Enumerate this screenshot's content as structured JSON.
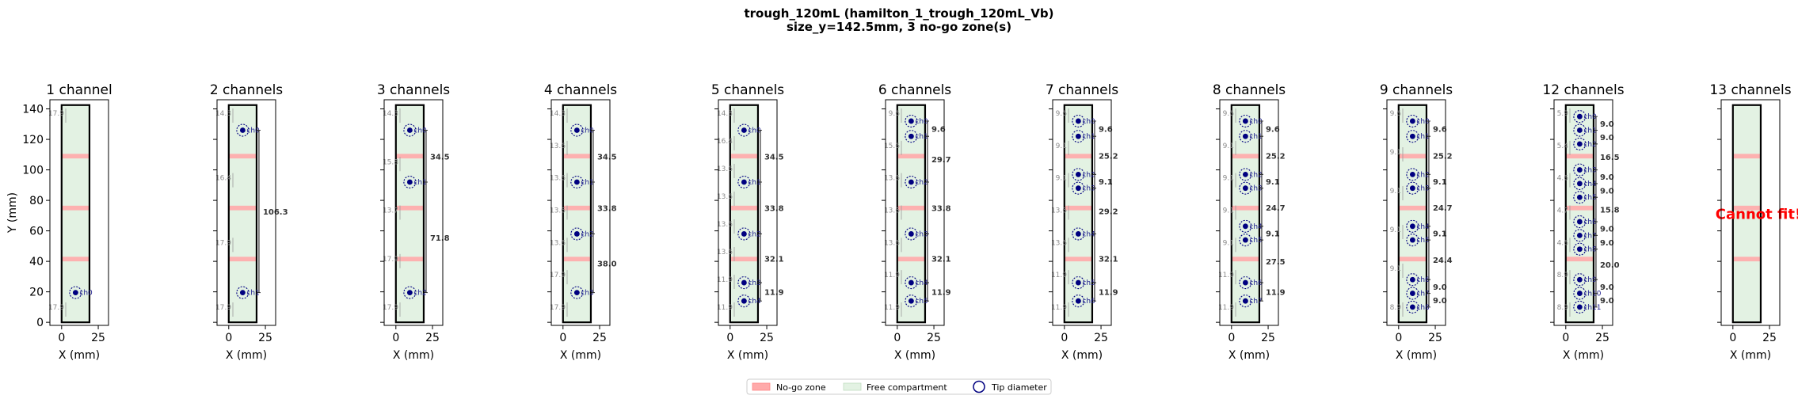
{
  "figure": {
    "title_line1": "trough_120mL (hamilton_1_trough_120mL_Vb)",
    "title_line2": "size_y=142.5mm, 3 no-go zone(s)"
  },
  "legend": {
    "nogo_label": "No-go zone",
    "free_label": "Free compartment",
    "tip_label": "Tip diameter"
  },
  "colors": {
    "nogo": "#ffaaaa",
    "free": "#e3f2e3",
    "tip": "#000080",
    "error": "#ff0000"
  },
  "chart_data": {
    "type": "scatter",
    "xlabel": "X (mm)",
    "ylabel": "Y (mm)",
    "xlim": [
      -8,
      32
    ],
    "ylim": [
      -2,
      146
    ],
    "xticks": [
      "0",
      "25"
    ],
    "yticks": [
      "0",
      "20",
      "40",
      "60",
      "80",
      "100",
      "120",
      "140"
    ],
    "container": {
      "x": [
        0,
        19
      ],
      "y": [
        0,
        142.5
      ]
    },
    "nogo_zones": [
      [
        40,
        43
      ],
      [
        73.5,
        76.5
      ],
      [
        107.5,
        110.5
      ]
    ],
    "tip_x": 9.5,
    "panels": [
      {
        "title": "1 channel",
        "tips": [
          {
            "y": 19.5,
            "label": "ch0"
          }
        ],
        "gaps": [
          "17.9",
          "17.9"
        ],
        "dists": [],
        "error": ""
      },
      {
        "title": "2 channels",
        "tips": [
          {
            "y": 19.5,
            "label": "ch1"
          },
          {
            "y": 126,
            "label": "ch0"
          }
        ],
        "gaps": [
          "17.9",
          "17.9",
          "16.4",
          "14.3"
        ],
        "dists": [
          "106.3"
        ],
        "error": ""
      },
      {
        "title": "3 channels",
        "tips": [
          {
            "y": 19.5,
            "label": "ch2"
          },
          {
            "y": 92,
            "label": "ch1"
          },
          {
            "y": 126,
            "label": "ch0"
          }
        ],
        "gaps": [
          "17.9",
          "17.9",
          "13.7",
          "15.8",
          "14.3"
        ],
        "dists": [
          "71.8",
          "34.5"
        ],
        "error": ""
      },
      {
        "title": "4 channels",
        "tips": [
          {
            "y": 19.5,
            "label": "ch3"
          },
          {
            "y": 58,
            "label": "ch2"
          },
          {
            "y": 92,
            "label": "ch1"
          },
          {
            "y": 126,
            "label": "ch0"
          }
        ],
        "gaps": [
          "17.9",
          "17.9",
          "13.6",
          "13.6",
          "13.6",
          "13.6",
          "14.3"
        ],
        "dists": [
          "38.0",
          "33.8",
          "34.5"
        ],
        "error": ""
      },
      {
        "title": "5 channels",
        "tips": [
          {
            "y": 14,
            "label": "ch4"
          },
          {
            "y": 26,
            "label": "ch3"
          },
          {
            "y": 58,
            "label": "ch2"
          },
          {
            "y": 92,
            "label": "ch1"
          },
          {
            "y": 126,
            "label": "ch0"
          }
        ],
        "gaps": [
          "11.9",
          "11.9",
          "13.6",
          "13.6",
          "13.6",
          "13.6",
          "16.4",
          "14.3"
        ],
        "dists": [
          "11.9",
          "32.1",
          "33.8",
          "34.5"
        ],
        "error": ""
      },
      {
        "title": "6 channels",
        "tips": [
          {
            "y": 14,
            "label": "ch5"
          },
          {
            "y": 26,
            "label": "ch4"
          },
          {
            "y": 58,
            "label": "ch3"
          },
          {
            "y": 92,
            "label": "ch2"
          },
          {
            "y": 122,
            "label": "ch1"
          },
          {
            "y": 132,
            "label": "ch0"
          }
        ],
        "gaps": [
          "11.9",
          "11.9",
          "13.6",
          "13.6",
          "13.6",
          "15.6",
          "9.6"
        ],
        "dists": [
          "11.9",
          "32.1",
          "33.8",
          "29.7",
          "9.6"
        ],
        "error": ""
      },
      {
        "title": "7 channels",
        "tips": [
          {
            "y": 14,
            "label": "ch6"
          },
          {
            "y": 26,
            "label": "ch5"
          },
          {
            "y": 58,
            "label": "ch4"
          },
          {
            "y": 88,
            "label": "ch3"
          },
          {
            "y": 97,
            "label": "ch2"
          },
          {
            "y": 122,
            "label": "ch1"
          },
          {
            "y": 132,
            "label": "ch0"
          }
        ],
        "gaps": [
          "11.9",
          "11.9",
          "13.6",
          "13.6",
          "9.1",
          "9.1",
          "9.6"
        ],
        "dists": [
          "11.9",
          "32.1",
          "29.2",
          "9.1",
          "25.2",
          "9.6"
        ],
        "error": ""
      },
      {
        "title": "8 channels",
        "tips": [
          {
            "y": 14,
            "label": "ch7"
          },
          {
            "y": 26,
            "label": "ch6"
          },
          {
            "y": 54,
            "label": "ch5"
          },
          {
            "y": 63,
            "label": "ch4"
          },
          {
            "y": 88,
            "label": "ch3"
          },
          {
            "y": 97,
            "label": "ch2"
          },
          {
            "y": 122,
            "label": "ch1"
          },
          {
            "y": 132,
            "label": "ch0"
          }
        ],
        "gaps": [
          "11.9",
          "11.9",
          "9.1",
          "9.1",
          "9.1",
          "9.1",
          "9.6"
        ],
        "dists": [
          "11.9",
          "27.5",
          "9.1",
          "24.7",
          "9.1",
          "25.2",
          "9.6"
        ],
        "error": ""
      },
      {
        "title": "9 channels",
        "tips": [
          {
            "y": 10,
            "label": "ch8"
          },
          {
            "y": 19,
            "label": "ch7"
          },
          {
            "y": 28,
            "label": "ch6"
          },
          {
            "y": 54,
            "label": "ch5"
          },
          {
            "y": 63,
            "label": "ch4"
          },
          {
            "y": 88,
            "label": "ch3"
          },
          {
            "y": 97,
            "label": "ch2"
          },
          {
            "y": 122,
            "label": "ch1"
          },
          {
            "y": 132,
            "label": "ch0"
          }
        ],
        "gaps": [
          "8.9",
          "9.1",
          "9.1",
          "9.1",
          "9.1",
          "9.6"
        ],
        "dists": [
          "9.0",
          "9.0",
          "24.4",
          "9.1",
          "24.7",
          "9.1",
          "25.2",
          "9.6"
        ],
        "error": ""
      },
      {
        "title": "12 channels",
        "tips": [
          {
            "y": 10,
            "label": "ch11"
          },
          {
            "y": 19,
            "label": "ch10"
          },
          {
            "y": 28,
            "label": "ch9"
          },
          {
            "y": 48,
            "label": "ch8"
          },
          {
            "y": 57,
            "label": "ch7"
          },
          {
            "y": 66,
            "label": "ch6"
          },
          {
            "y": 82,
            "label": "ch5"
          },
          {
            "y": 91,
            "label": "ch4"
          },
          {
            "y": 100,
            "label": "ch3"
          },
          {
            "y": 117,
            "label": "ch2"
          },
          {
            "y": 126,
            "label": "ch1"
          },
          {
            "y": 135,
            "label": "ch0"
          }
        ],
        "gaps": [
          "8.9",
          "8.9",
          "4.6",
          "4.7",
          "4.6",
          "5.4",
          "5.9"
        ],
        "dists": [
          "9.0",
          "9.0",
          "20.0",
          "9.0",
          "9.0",
          "15.8",
          "9.0",
          "9.0",
          "16.5",
          "9.0",
          "9.0"
        ],
        "error": ""
      },
      {
        "title": "13 channels",
        "tips": [],
        "gaps": [],
        "dists": [],
        "error": "Cannot fit!"
      }
    ]
  }
}
